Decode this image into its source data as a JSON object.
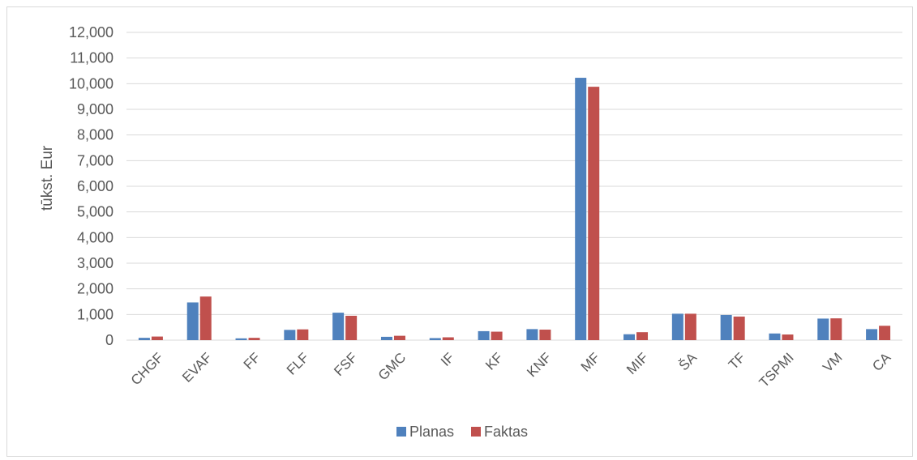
{
  "chart_data": {
    "type": "bar",
    "title": "",
    "xlabel": "",
    "ylabel": "tūkst. Eur",
    "ylim": [
      0,
      12000
    ],
    "yticks": [
      0,
      1000,
      2000,
      3000,
      4000,
      5000,
      6000,
      7000,
      8000,
      9000,
      10000,
      11000,
      12000
    ],
    "ytick_labels": [
      "0",
      "1,000",
      "2,000",
      "3,000",
      "4,000",
      "5,000",
      "6,000",
      "7,000",
      "8,000",
      "9,000",
      "10,000",
      "11,000",
      "12,000"
    ],
    "grid": true,
    "legend_position": "bottom",
    "categories": [
      "CHGF",
      "EVAF",
      "FF",
      "FLF",
      "FSF",
      "GMC",
      "IF",
      "KF",
      "KNF",
      "MF",
      "MIF",
      "ŠA",
      "TF",
      "TSPMI",
      "VM",
      "CA"
    ],
    "series": [
      {
        "name": "Planas",
        "color": "#4f81bd",
        "values": [
          90,
          1470,
          70,
          400,
          1070,
          130,
          80,
          350,
          430,
          10230,
          230,
          1030,
          980,
          260,
          840,
          430
        ]
      },
      {
        "name": "Faktas",
        "color": "#c0504d",
        "values": [
          140,
          1700,
          90,
          420,
          950,
          170,
          110,
          330,
          410,
          9880,
          310,
          1030,
          920,
          220,
          850,
          560
        ]
      }
    ]
  }
}
